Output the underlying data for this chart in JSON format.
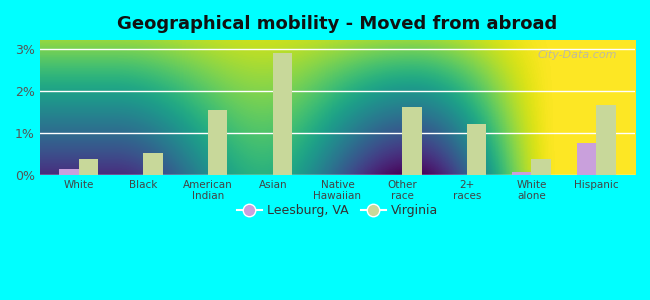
{
  "title": "Geographical mobility - Moved from abroad",
  "categories": [
    "White",
    "Black",
    "American\nIndian",
    "Asian",
    "Native\nHawaiian",
    "Other\nrace",
    "2+\nraces",
    "White\nalone",
    "Hispanic"
  ],
  "leesburg_values": [
    0.15,
    0.0,
    0.0,
    0.0,
    0.0,
    0.0,
    0.0,
    0.07,
    0.75
  ],
  "virginia_values": [
    0.38,
    0.52,
    1.53,
    2.9,
    0.0,
    1.62,
    1.2,
    0.38,
    1.65
  ],
  "leesburg_color": "#c9a0dc",
  "virginia_color": "#c8d89a",
  "bg_top": "#f5faf5",
  "bg_bottom": "#c8e8c0",
  "outer_bg": "#00ffff",
  "ylim": [
    0,
    3.2
  ],
  "yticks": [
    0,
    1,
    2,
    3
  ],
  "yticklabels": [
    "0%",
    "1%",
    "2%",
    "3%"
  ],
  "bar_width": 0.3,
  "legend_leesburg": "Leesburg, VA",
  "legend_virginia": "Virginia",
  "grid_color": "#ffffff"
}
